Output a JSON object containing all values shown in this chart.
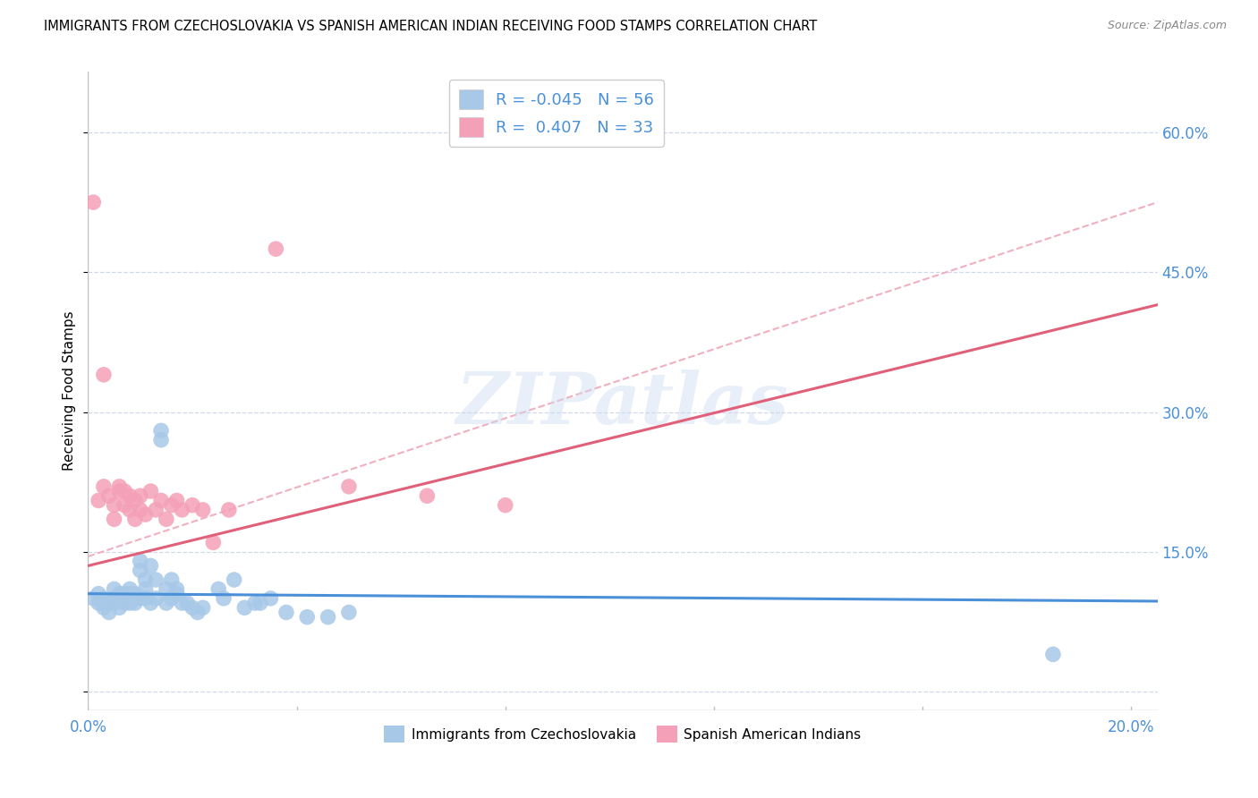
{
  "title": "IMMIGRANTS FROM CZECHOSLOVAKIA VS SPANISH AMERICAN INDIAN RECEIVING FOOD STAMPS CORRELATION CHART",
  "source": "Source: ZipAtlas.com",
  "ylabel": "Receiving Food Stamps",
  "xlim": [
    0.0,
    0.205
  ],
  "ylim": [
    -0.02,
    0.665
  ],
  "yticks": [
    0.0,
    0.15,
    0.3,
    0.45,
    0.6
  ],
  "ytick_labels_right": [
    "",
    "15.0%",
    "30.0%",
    "45.0%",
    "60.0%"
  ],
  "xtick_positions": [
    0.0,
    0.04,
    0.08,
    0.12,
    0.16,
    0.2
  ],
  "xtick_labels": [
    "0.0%",
    "",
    "",
    "",
    "",
    "20.0%"
  ],
  "color_blue": "#a8c8e8",
  "color_pink": "#f4a0b8",
  "line_blue": "#4a90d9",
  "line_pink": "#e0607a",
  "line_dashed_color": "#f0b0c0",
  "watermark_text": "ZIPatlas",
  "legend_r_label1": "R = -0.045   N = 56",
  "legend_r_label2": "R =  0.407   N = 33",
  "legend_series1": "Immigrants from Czechoslovakia",
  "legend_series2": "Spanish American Indians",
  "blue_line_x": [
    0.0,
    0.205
  ],
  "blue_line_y": [
    0.105,
    0.097
  ],
  "pink_line_x": [
    0.0,
    0.205
  ],
  "pink_line_y": [
    0.135,
    0.415
  ],
  "dashed_line_x": [
    0.0,
    0.205
  ],
  "dashed_line_y": [
    0.145,
    0.525
  ],
  "blue_x": [
    0.001,
    0.002,
    0.002,
    0.003,
    0.003,
    0.004,
    0.004,
    0.005,
    0.005,
    0.005,
    0.006,
    0.006,
    0.006,
    0.007,
    0.007,
    0.007,
    0.008,
    0.008,
    0.008,
    0.009,
    0.009,
    0.01,
    0.01,
    0.01,
    0.011,
    0.011,
    0.011,
    0.012,
    0.012,
    0.013,
    0.013,
    0.014,
    0.014,
    0.015,
    0.015,
    0.016,
    0.016,
    0.017,
    0.017,
    0.018,
    0.019,
    0.02,
    0.021,
    0.022,
    0.025,
    0.026,
    0.028,
    0.03,
    0.032,
    0.033,
    0.035,
    0.038,
    0.042,
    0.046,
    0.05,
    0.185
  ],
  "blue_y": [
    0.1,
    0.095,
    0.105,
    0.09,
    0.1,
    0.085,
    0.095,
    0.1,
    0.095,
    0.11,
    0.09,
    0.1,
    0.105,
    0.095,
    0.1,
    0.105,
    0.095,
    0.105,
    0.11,
    0.095,
    0.105,
    0.14,
    0.13,
    0.1,
    0.1,
    0.11,
    0.12,
    0.135,
    0.095,
    0.12,
    0.1,
    0.27,
    0.28,
    0.11,
    0.095,
    0.1,
    0.12,
    0.105,
    0.11,
    0.095,
    0.095,
    0.09,
    0.085,
    0.09,
    0.11,
    0.1,
    0.12,
    0.09,
    0.095,
    0.095,
    0.1,
    0.085,
    0.08,
    0.08,
    0.085,
    0.04
  ],
  "pink_x": [
    0.001,
    0.002,
    0.003,
    0.003,
    0.004,
    0.005,
    0.005,
    0.006,
    0.006,
    0.007,
    0.007,
    0.008,
    0.008,
    0.009,
    0.009,
    0.01,
    0.01,
    0.011,
    0.012,
    0.013,
    0.014,
    0.015,
    0.016,
    0.017,
    0.018,
    0.02,
    0.022,
    0.024,
    0.027,
    0.036,
    0.05,
    0.065,
    0.08
  ],
  "pink_y": [
    0.525,
    0.205,
    0.34,
    0.22,
    0.21,
    0.2,
    0.185,
    0.22,
    0.215,
    0.2,
    0.215,
    0.195,
    0.21,
    0.205,
    0.185,
    0.21,
    0.195,
    0.19,
    0.215,
    0.195,
    0.205,
    0.185,
    0.2,
    0.205,
    0.195,
    0.2,
    0.195,
    0.16,
    0.195,
    0.475,
    0.22,
    0.21,
    0.2
  ]
}
